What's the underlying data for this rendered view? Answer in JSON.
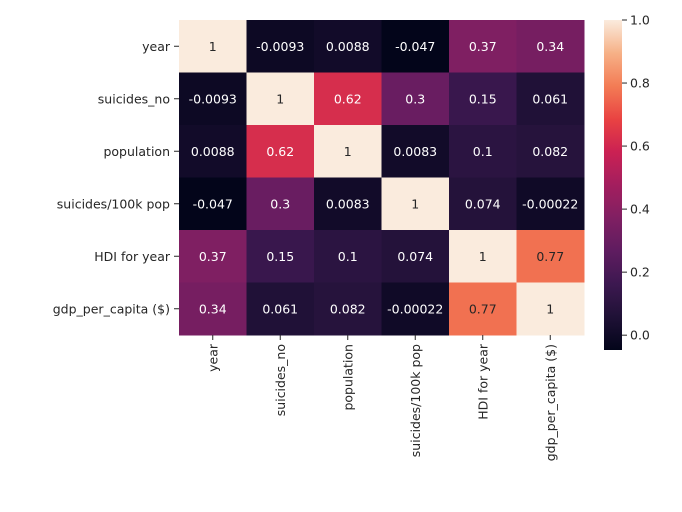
{
  "chart_data": {
    "type": "heatmap",
    "title": "",
    "xlabel": "",
    "ylabel": "",
    "rows": [
      "year",
      "suicides_no",
      "population",
      "suicides/100k pop",
      "HDI for year",
      "gdp_per_capita ($)"
    ],
    "columns": [
      "year",
      "suicides_no",
      "population",
      "suicides/100k pop",
      "HDI for year",
      "gdp_per_capita ($)"
    ],
    "values": [
      [
        1,
        -0.0093,
        0.0088,
        -0.047,
        0.37,
        0.34
      ],
      [
        -0.0093,
        1,
        0.62,
        0.3,
        0.15,
        0.061
      ],
      [
        0.0088,
        0.62,
        1,
        0.0083,
        0.1,
        0.082
      ],
      [
        -0.047,
        0.3,
        0.0083,
        1,
        0.074,
        -0.00022
      ],
      [
        0.37,
        0.15,
        0.1,
        0.074,
        1,
        0.77
      ],
      [
        0.34,
        0.061,
        0.082,
        -0.00022,
        0.77,
        1
      ]
    ],
    "annotations": [
      [
        "1",
        "-0.0093",
        "0.0088",
        "-0.047",
        "0.37",
        "0.34"
      ],
      [
        "-0.0093",
        "1",
        "0.62",
        "0.3",
        "0.15",
        "0.061"
      ],
      [
        "0.0088",
        "0.62",
        "1",
        "0.0083",
        "0.1",
        "0.082"
      ],
      [
        "-0.047",
        "0.3",
        "0.0083",
        "1",
        "0.074",
        "-0.00022"
      ],
      [
        "0.37",
        "0.15",
        "0.1",
        "0.074",
        "1",
        "0.77"
      ],
      [
        "0.34",
        "0.061",
        "0.082",
        "-0.00022",
        "0.77",
        "1"
      ]
    ],
    "colormap": "rocket",
    "colorbar": {
      "range": [
        -0.047,
        1.0
      ],
      "ticks": [
        0.0,
        0.2,
        0.4,
        0.6,
        0.8,
        1.0
      ],
      "tick_labels": [
        "0.0",
        "0.2",
        "0.4",
        "0.6",
        "0.8",
        "1.0"
      ]
    },
    "grid": false,
    "legend": "colorbar-right"
  }
}
